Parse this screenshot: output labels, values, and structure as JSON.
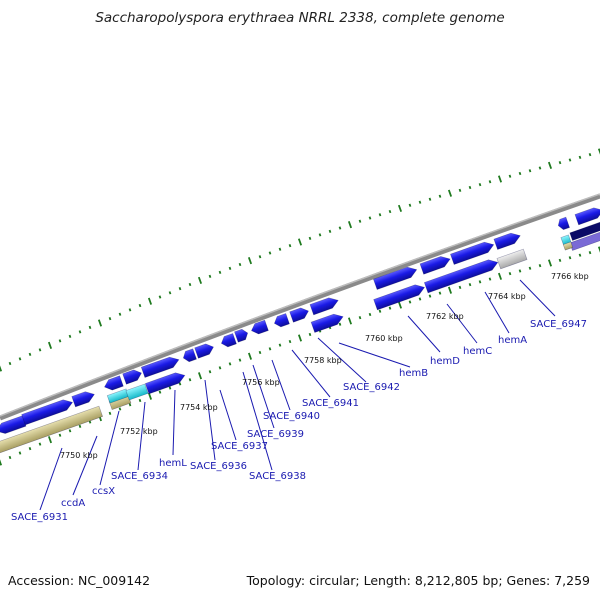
{
  "title": "Saccharopolyspora erythraea NRRL 2338, complete genome",
  "footer": {
    "accession": "Accession: NC_009142",
    "summary": "Topology: circular; Length: 8,212,805 bp; Genes: 7,259"
  },
  "colors": {
    "gene_blue": "#1a1ae6",
    "gene_dark_navy": "#0a0a66",
    "gene_purple": "#7a6ad6",
    "gene_cyan": "#19d8e6",
    "gene_teal": "#14b8b8",
    "gene_khaki": "#c8bf84",
    "gene_grey": "#c8c8c8",
    "backbone_grey": "#8a8a8a",
    "tick_green": "#1f7a1f",
    "label_blue": "#1a1ab0"
  },
  "scale_labels": [
    "7750 kbp",
    "7752 kbp",
    "7754 kbp",
    "7756 kbp",
    "7758 kbp",
    "7760 kbp",
    "7762 kbp",
    "7764 kbp",
    "7766 kbp"
  ],
  "gene_labels": [
    "SACE_6931",
    "ccdA",
    "ccsX",
    "SACE_6934",
    "hemL",
    "SACE_6936",
    "SACE_6937",
    "SACE_6938",
    "SACE_6939",
    "SACE_6940",
    "SACE_6941",
    "SACE_6942",
    "hemB",
    "hemD",
    "hemC",
    "hemA",
    "SACE_6947"
  ]
}
